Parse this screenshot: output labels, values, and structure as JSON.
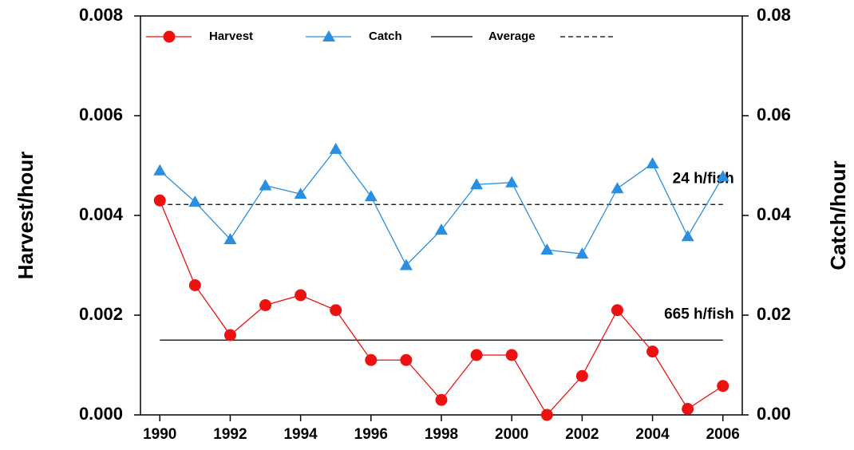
{
  "chart_data": {
    "type": "line",
    "y_label": "Harvest/hour",
    "y2_label": "Catch/hour",
    "x": [
      1990,
      1991,
      1992,
      1993,
      1994,
      1995,
      1996,
      1997,
      1998,
      1999,
      2000,
      2001,
      2002,
      2003,
      2004,
      2005,
      2006
    ],
    "series": [
      {
        "name": "Harvest",
        "color": "#ee1111",
        "marker": "circle",
        "axis": "y",
        "values": [
          0.0043,
          0.0026,
          0.0016,
          0.0022,
          0.0024,
          0.0021,
          0.0011,
          0.0011,
          0.0003,
          0.0012,
          0.0012,
          0.0,
          0.00078,
          0.0021,
          0.00127,
          0.00012,
          0.00058
        ]
      },
      {
        "name": "Catch",
        "color": "#2a8fe0",
        "marker": "triangle",
        "axis": "y2",
        "values": [
          0.049,
          0.0427,
          0.0352,
          0.046,
          0.0443,
          0.0533,
          0.0438,
          0.03,
          0.0371,
          0.0462,
          0.0466,
          0.0331,
          0.0323,
          0.0454,
          0.0504,
          0.0358,
          0.0478
        ]
      }
    ],
    "averages": {
      "name": "Average",
      "color": "#000000",
      "lines": [
        {
          "value": 0.0015,
          "label": "665 h/fish",
          "axis": "y",
          "dash": false
        },
        {
          "value": 0.0422,
          "label": "24 h/fish",
          "axis": "y2",
          "dash": true
        }
      ]
    },
    "xlim": [
      1989.45,
      2006.55
    ],
    "xticks": [
      1990,
      1992,
      1994,
      1996,
      1998,
      2000,
      2002,
      2004,
      2006
    ],
    "ylim": [
      0,
      0.008
    ],
    "yticks": [
      {
        "value": 0,
        "label": "0.000"
      },
      {
        "value": 0.002,
        "label": "0.002"
      },
      {
        "value": 0.004,
        "label": "0.004"
      },
      {
        "value": 0.006,
        "label": "0.006"
      },
      {
        "value": 0.008,
        "label": "0.008"
      }
    ],
    "y2lim": [
      0,
      0.08
    ],
    "y2ticks": [
      {
        "value": 0,
        "label": "0.00"
      },
      {
        "value": 0.02,
        "label": "0.02"
      },
      {
        "value": 0.04,
        "label": "0.04"
      },
      {
        "value": 0.06,
        "label": "0.06"
      },
      {
        "value": 0.08,
        "label": "0.08"
      }
    ],
    "legend": "top"
  }
}
